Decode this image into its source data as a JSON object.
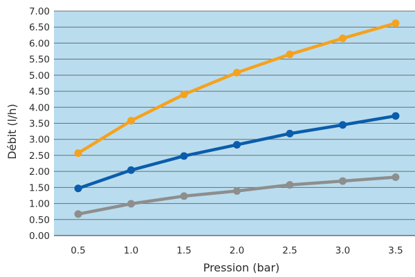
{
  "chart_data": {
    "type": "line",
    "title": "",
    "xlabel": "Pression (bar)",
    "ylabel": "Débit (l/h)",
    "x": [
      0.5,
      1.0,
      1.5,
      2.0,
      2.5,
      3.0,
      3.5
    ],
    "x_tick_labels": [
      "0.5",
      "1.0",
      "1.5",
      "2.0",
      "2.5",
      "3.0",
      "3.5"
    ],
    "ylim": [
      0,
      7
    ],
    "y_ticks": [
      0,
      0.5,
      1,
      1.5,
      2,
      2.5,
      3,
      3.5,
      4,
      4.5,
      5,
      5.5,
      6,
      6.5,
      7
    ],
    "y_tick_labels": [
      "0.00",
      "0.50",
      "1.00",
      "1.50",
      "2.00",
      "2.50",
      "3.00",
      "3.50",
      "4.00",
      "4.50",
      "5.00",
      "5.50",
      "6.00",
      "6.50",
      "7.00"
    ],
    "grid": true,
    "legend": "none",
    "series": [
      {
        "color": "#f5a21e",
        "values": [
          2.57,
          3.58,
          4.4,
          5.08,
          5.65,
          6.15,
          6.62
        ]
      },
      {
        "color": "#0b5cab",
        "values": [
          1.47,
          2.04,
          2.48,
          2.83,
          3.18,
          3.45,
          3.73
        ]
      },
      {
        "color": "#8e8e8e",
        "values": [
          0.67,
          0.99,
          1.23,
          1.39,
          1.58,
          1.7,
          1.82
        ]
      }
    ]
  },
  "colors": {
    "plot_background": "#b9ddef",
    "gridline": "#6d6d6d"
  }
}
